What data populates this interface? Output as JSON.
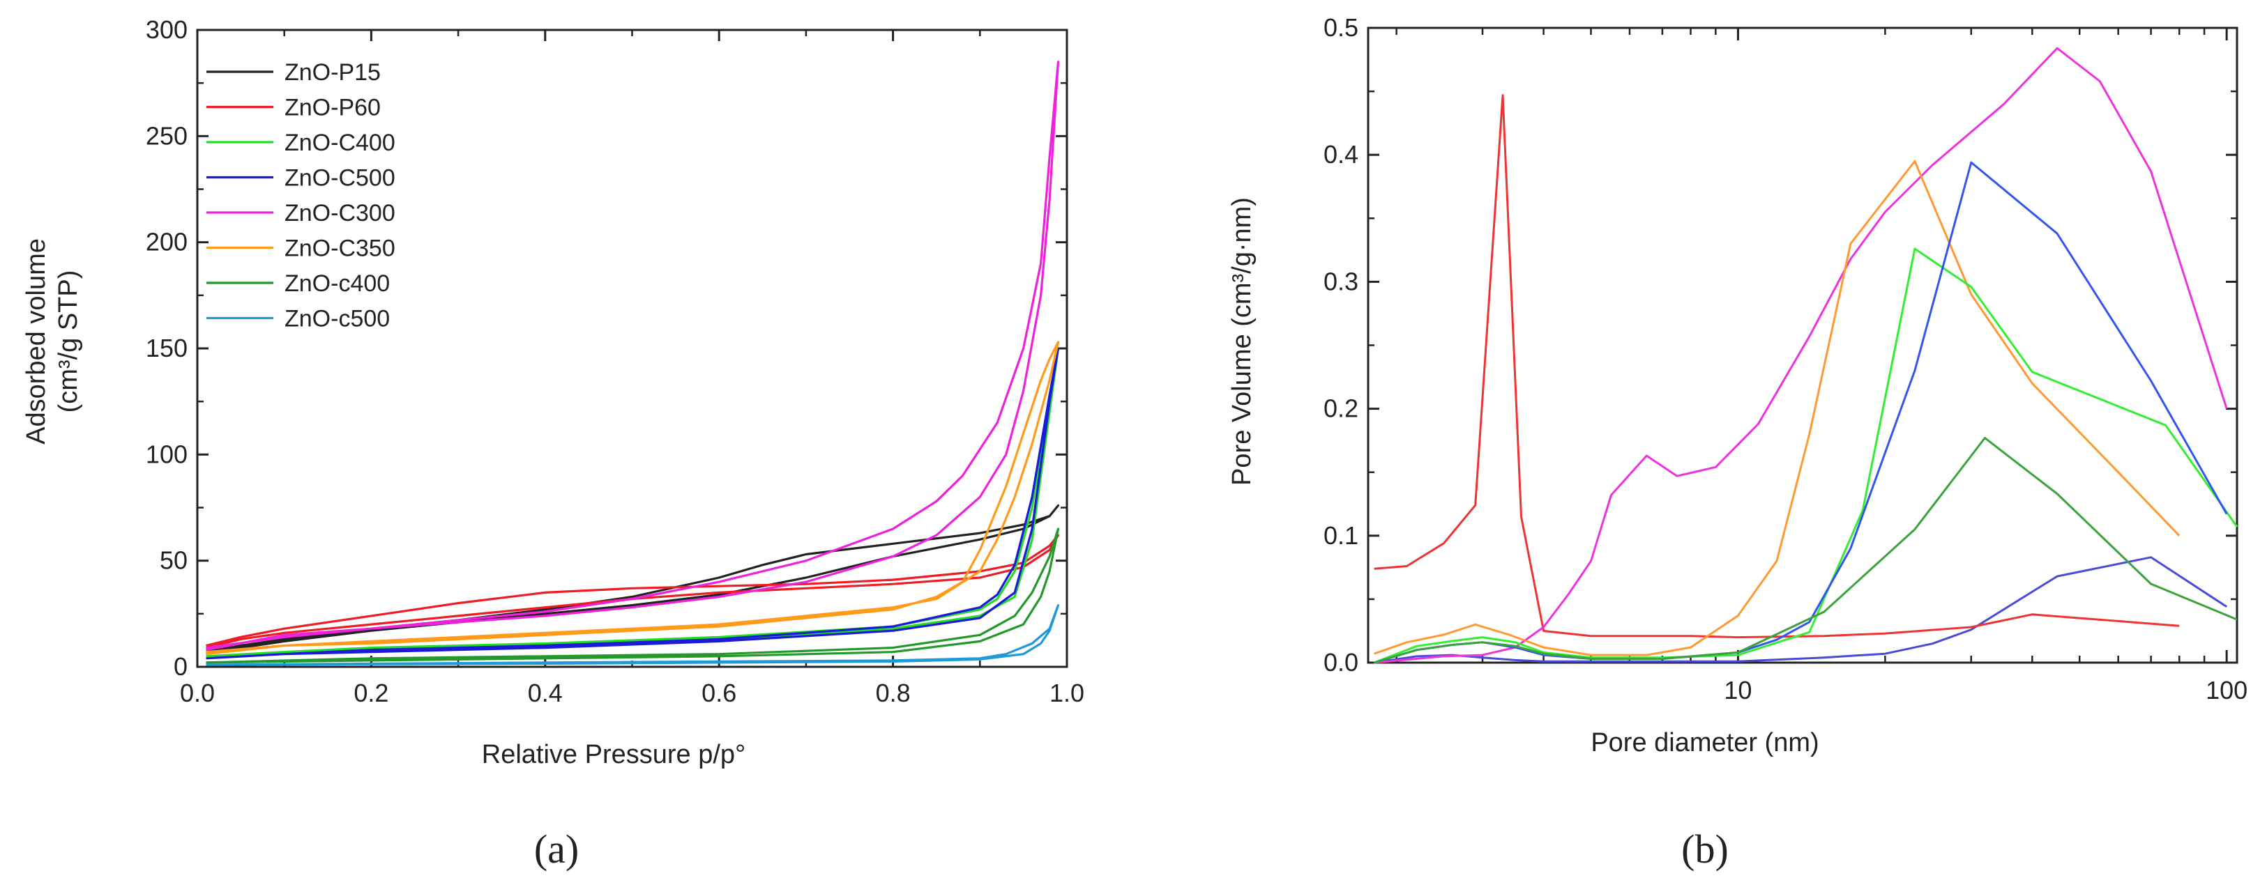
{
  "chart_data": [
    {
      "id": "a",
      "type": "line",
      "panel_label": "(a)",
      "title": "",
      "xlabel": "Relative Pressure p/p°",
      "ylabel_line1": "Adsorbed volume",
      "ylabel_line2": "(cm³/g STP)",
      "xlim": [
        0,
        1.0
      ],
      "ylim": [
        0,
        300
      ],
      "xscale": "linear",
      "xticks": [
        0,
        0.2,
        0.4,
        0.6,
        0.8,
        1.0
      ],
      "xtick_labels": [
        "0.0",
        "0.2",
        "0.4",
        "0.6",
        "0.8",
        "1.0"
      ],
      "yticks": [
        0,
        50,
        100,
        150,
        200,
        250,
        300
      ],
      "ytick_labels": [
        "0",
        "50",
        "100",
        "150",
        "200",
        "250",
        "300"
      ],
      "legend_position": "top-left",
      "series": [
        {
          "name": "ZnO-P15",
          "color": "#222222",
          "x": [
            0.01,
            0.05,
            0.1,
            0.2,
            0.3,
            0.4,
            0.5,
            0.6,
            0.7,
            0.8,
            0.9,
            0.95,
            0.98,
            0.99,
            0.98,
            0.95,
            0.9,
            0.8,
            0.7,
            0.65,
            0.6,
            0.5,
            0.4,
            0.3,
            0.2,
            0.1,
            0.05,
            0.01
          ],
          "y": [
            6,
            9,
            12,
            17,
            21,
            25,
            29,
            34,
            42,
            52,
            60,
            65,
            71,
            76,
            71,
            67,
            63,
            58,
            53,
            48,
            42,
            33,
            27,
            22,
            18,
            13,
            10,
            7
          ]
        },
        {
          "name": "ZnO-P60",
          "color": "#ee1c24",
          "x": [
            0.01,
            0.05,
            0.1,
            0.2,
            0.3,
            0.4,
            0.45,
            0.5,
            0.6,
            0.7,
            0.8,
            0.9,
            0.95,
            0.98,
            0.99,
            0.98,
            0.95,
            0.9,
            0.8,
            0.7,
            0.6,
            0.5,
            0.4,
            0.3,
            0.2,
            0.1,
            0.05,
            0.01
          ],
          "y": [
            9,
            13,
            16,
            20,
            24,
            28,
            30,
            32,
            35,
            37,
            39,
            42,
            47,
            55,
            62,
            57,
            49,
            45,
            41,
            39,
            38,
            37,
            35,
            30,
            24,
            18,
            14,
            10
          ]
        },
        {
          "name": "ZnO-C400",
          "color": "#22dd22",
          "x": [
            0.01,
            0.1,
            0.2,
            0.4,
            0.6,
            0.8,
            0.9,
            0.94,
            0.96,
            0.98,
            0.99,
            0.98,
            0.96,
            0.94,
            0.92,
            0.9,
            0.8,
            0.6,
            0.4,
            0.2,
            0.1,
            0.01
          ],
          "y": [
            5,
            7,
            8,
            10,
            13,
            18,
            24,
            33,
            60,
            120,
            150,
            125,
            75,
            45,
            32,
            27,
            19,
            14,
            11,
            9,
            7,
            5
          ]
        },
        {
          "name": "ZnO-C500",
          "color": "#1a1ad8",
          "x": [
            0.01,
            0.1,
            0.2,
            0.4,
            0.6,
            0.8,
            0.9,
            0.94,
            0.96,
            0.98,
            0.99,
            0.98,
            0.96,
            0.94,
            0.92,
            0.9,
            0.8,
            0.6,
            0.4,
            0.2,
            0.1,
            0.01
          ],
          "y": [
            4,
            6,
            7,
            9,
            12,
            17,
            23,
            35,
            65,
            125,
            150,
            128,
            80,
            48,
            34,
            28,
            19,
            13,
            10,
            8,
            6,
            4
          ]
        },
        {
          "name": "ZnO-C300",
          "color": "#ee22dd",
          "x": [
            0.01,
            0.1,
            0.2,
            0.3,
            0.4,
            0.5,
            0.6,
            0.7,
            0.8,
            0.85,
            0.9,
            0.93,
            0.95,
            0.97,
            0.98,
            0.99,
            0.98,
            0.97,
            0.95,
            0.92,
            0.88,
            0.85,
            0.8,
            0.7,
            0.6,
            0.5,
            0.4,
            0.3,
            0.2,
            0.1,
            0.01
          ],
          "y": [
            8,
            15,
            18,
            21,
            24,
            28,
            33,
            40,
            52,
            62,
            80,
            100,
            130,
            175,
            220,
            285,
            240,
            190,
            150,
            115,
            90,
            78,
            65,
            50,
            40,
            32,
            26,
            22,
            18,
            14,
            9
          ]
        },
        {
          "name": "ZnO-C350",
          "color": "#ff9a1a",
          "x": [
            0.01,
            0.1,
            0.2,
            0.4,
            0.6,
            0.8,
            0.85,
            0.88,
            0.9,
            0.93,
            0.95,
            0.97,
            0.98,
            0.99,
            0.98,
            0.96,
            0.94,
            0.92,
            0.9,
            0.85,
            0.8,
            0.6,
            0.4,
            0.2,
            0.1,
            0.01
          ],
          "y": [
            6,
            10,
            11,
            15,
            19,
            27,
            33,
            40,
            55,
            85,
            110,
            135,
            145,
            153,
            135,
            105,
            80,
            60,
            45,
            32,
            28,
            20,
            16,
            12,
            10,
            7
          ]
        },
        {
          "name": "ZnO-c400",
          "color": "#22992a",
          "x": [
            0.01,
            0.2,
            0.4,
            0.6,
            0.8,
            0.9,
            0.95,
            0.97,
            0.98,
            0.99,
            0.98,
            0.96,
            0.94,
            0.9,
            0.8,
            0.6,
            0.4,
            0.2,
            0.01
          ],
          "y": [
            2,
            3,
            4,
            5,
            7,
            12,
            20,
            33,
            45,
            65,
            52,
            35,
            24,
            15,
            9,
            6,
            5,
            4,
            2
          ]
        },
        {
          "name": "ZnO-c500",
          "color": "#1e9ad6",
          "x": [
            0.01,
            0.4,
            0.8,
            0.9,
            0.95,
            0.97,
            0.98,
            0.99,
            0.98,
            0.96,
            0.93,
            0.9,
            0.8,
            0.4,
            0.01
          ],
          "y": [
            1,
            1.5,
            2.5,
            3.5,
            6,
            11,
            17,
            29,
            18,
            11,
            6,
            4,
            3,
            2,
            1
          ]
        }
      ]
    },
    {
      "id": "b",
      "type": "line",
      "panel_label": "(b)",
      "title": "",
      "xlabel": "Pore diameter (nm)",
      "ylabel": "Pore Volume  (cm³/g·nm)",
      "xlim": [
        1.75,
        105
      ],
      "ylim": [
        0,
        0.5
      ],
      "xscale": "log",
      "xticks_major": [
        10,
        100
      ],
      "xtick_labels": [
        "10",
        "100"
      ],
      "yticks": [
        0.0,
        0.1,
        0.2,
        0.3,
        0.4,
        0.5
      ],
      "ytick_labels": [
        "0.0",
        "0.1",
        "0.2",
        "0.3",
        "0.4",
        "0.5"
      ],
      "series": [
        {
          "name": "ZnO-P15",
          "color": "#4a4ad6",
          "x": [
            1.8,
            2.2,
            2.6,
            3,
            3.5,
            4,
            5,
            6,
            8,
            10,
            15,
            20,
            25,
            30,
            45,
            70,
            100
          ],
          "y": [
            0,
            0.005,
            0.006,
            0.004,
            0.002,
            0.001,
            0.001,
            0.001,
            0.001,
            0.001,
            0.004,
            0.007,
            0.015,
            0.026,
            0.068,
            0.083,
            0.044
          ]
        },
        {
          "name": "ZnO-P60",
          "color": "#ee3333",
          "x": [
            1.8,
            2.1,
            2.5,
            2.9,
            3.3,
            3.6,
            4,
            5,
            6,
            8,
            10,
            15,
            20,
            30,
            40,
            80
          ],
          "y": [
            0.074,
            0.076,
            0.094,
            0.124,
            0.447,
            0.115,
            0.025,
            0.021,
            0.021,
            0.021,
            0.02,
            0.021,
            0.023,
            0.028,
            0.038,
            0.029
          ]
        },
        {
          "name": "ZnO-C300",
          "color": "#ee33dd",
          "x": [
            1.8,
            2.5,
            3,
            3.5,
            4,
            4.5,
            5,
            5.5,
            6.5,
            7.5,
            9,
            11,
            14,
            17,
            20,
            25,
            35,
            45,
            55,
            70,
            100
          ],
          "y": [
            0,
            0.005,
            0.006,
            0.012,
            0.028,
            0.054,
            0.08,
            0.132,
            0.163,
            0.147,
            0.154,
            0.188,
            0.257,
            0.318,
            0.355,
            0.392,
            0.44,
            0.484,
            0.458,
            0.387,
            0.2
          ]
        },
        {
          "name": "ZnO-C350",
          "color": "#ff9933",
          "x": [
            1.8,
            2.1,
            2.5,
            2.9,
            3.4,
            4,
            5,
            6.5,
            8,
            10,
            12,
            14,
            17,
            23,
            30,
            40,
            60,
            80
          ],
          "y": [
            0.007,
            0.016,
            0.022,
            0.03,
            0.022,
            0.012,
            0.006,
            0.006,
            0.012,
            0.037,
            0.08,
            0.18,
            0.33,
            0.395,
            0.29,
            0.22,
            0.15,
            0.1
          ]
        },
        {
          "name": "ZnO-C400",
          "color": "#33ee33",
          "x": [
            1.8,
            2.2,
            2.6,
            3,
            3.5,
            4,
            5,
            7,
            10,
            14,
            18,
            23,
            30,
            40,
            75,
            105
          ],
          "y": [
            0,
            0.013,
            0.017,
            0.02,
            0.016,
            0.008,
            0.004,
            0.004,
            0.006,
            0.024,
            0.12,
            0.326,
            0.296,
            0.229,
            0.187,
            0.107
          ]
        },
        {
          "name": "ZnO-C500",
          "color": "#3355ee",
          "x": [
            1.8,
            2.2,
            2.6,
            3,
            3.5,
            4,
            5,
            7,
            10,
            12,
            14,
            17,
            23,
            30,
            45,
            70,
            100
          ],
          "y": [
            0,
            0.01,
            0.014,
            0.016,
            0.012,
            0.006,
            0.003,
            0.003,
            0.008,
            0.018,
            0.032,
            0.09,
            0.23,
            0.394,
            0.338,
            0.222,
            0.117
          ]
        },
        {
          "name": "ZnO-c400",
          "color": "#3aa33a",
          "x": [
            1.8,
            2.2,
            2.6,
            3,
            3.5,
            4,
            5,
            7,
            10,
            15,
            23,
            32,
            45,
            70,
            105
          ],
          "y": [
            0,
            0.01,
            0.014,
            0.016,
            0.013,
            0.007,
            0.003,
            0.003,
            0.008,
            0.04,
            0.105,
            0.177,
            0.133,
            0.062,
            0.034
          ]
        }
      ]
    }
  ]
}
